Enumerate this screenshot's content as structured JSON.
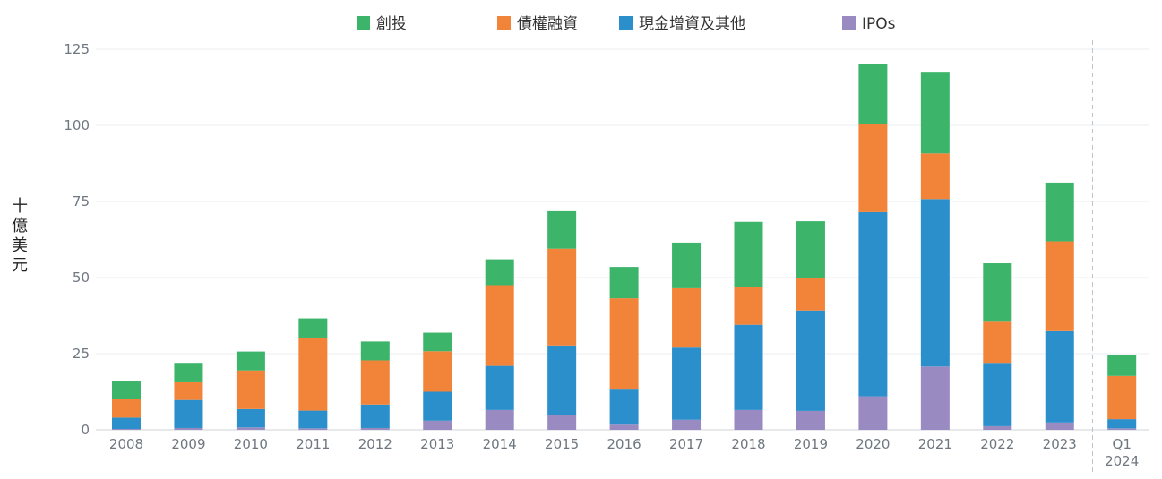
{
  "chart_data": {
    "type": "bar",
    "stacked": true,
    "ylabel": "十億美元",
    "ylim": [
      0,
      125
    ],
    "yticks": [
      0,
      25,
      50,
      75,
      100,
      125
    ],
    "grid": true,
    "legend_position": "top",
    "categories": [
      "2008",
      "2009",
      "2010",
      "2011",
      "2012",
      "2013",
      "2014",
      "2015",
      "2016",
      "2017",
      "2018",
      "2019",
      "2020",
      "2021",
      "2022",
      "2023",
      "Q1\n2024"
    ],
    "series": [
      {
        "name": "IPOs",
        "color": "#9a8ac2",
        "values": [
          0.3,
          0.6,
          0.8,
          0.5,
          0.6,
          3,
          6.5,
          5,
          1.7,
          3.3,
          6.5,
          6.2,
          11,
          20.8,
          1.2,
          2.4,
          0.5
        ]
      },
      {
        "name": "現金增資及其他",
        "color": "#2b8fcb",
        "values": [
          3.7,
          9.2,
          6,
          5.8,
          7.7,
          9.5,
          14.5,
          22.7,
          11.5,
          23.7,
          28,
          33,
          60.5,
          55,
          20.8,
          30,
          3
        ]
      },
      {
        "name": "債權融資",
        "color": "#f2843a",
        "values": [
          6,
          5.8,
          12.7,
          24,
          14.5,
          13.3,
          26.5,
          31.8,
          30,
          19.5,
          12.3,
          10.5,
          29,
          15,
          13.5,
          29.5,
          14.2
        ]
      },
      {
        "name": "創投",
        "color": "#3cb56a",
        "values": [
          6,
          6.4,
          6.2,
          6.3,
          6.2,
          6.1,
          8.5,
          12.3,
          10.3,
          15,
          21.5,
          18.8,
          19.5,
          26.8,
          19.2,
          19.3,
          6.8
        ]
      }
    ],
    "legend": [
      {
        "name": "創投",
        "color": "#3cb56a"
      },
      {
        "name": "債權融資",
        "color": "#f2843a"
      },
      {
        "name": "現金增資及其他",
        "color": "#2b8fcb"
      },
      {
        "name": "IPOs",
        "color": "#9a8ac2"
      }
    ],
    "separator_before_last": true
  }
}
